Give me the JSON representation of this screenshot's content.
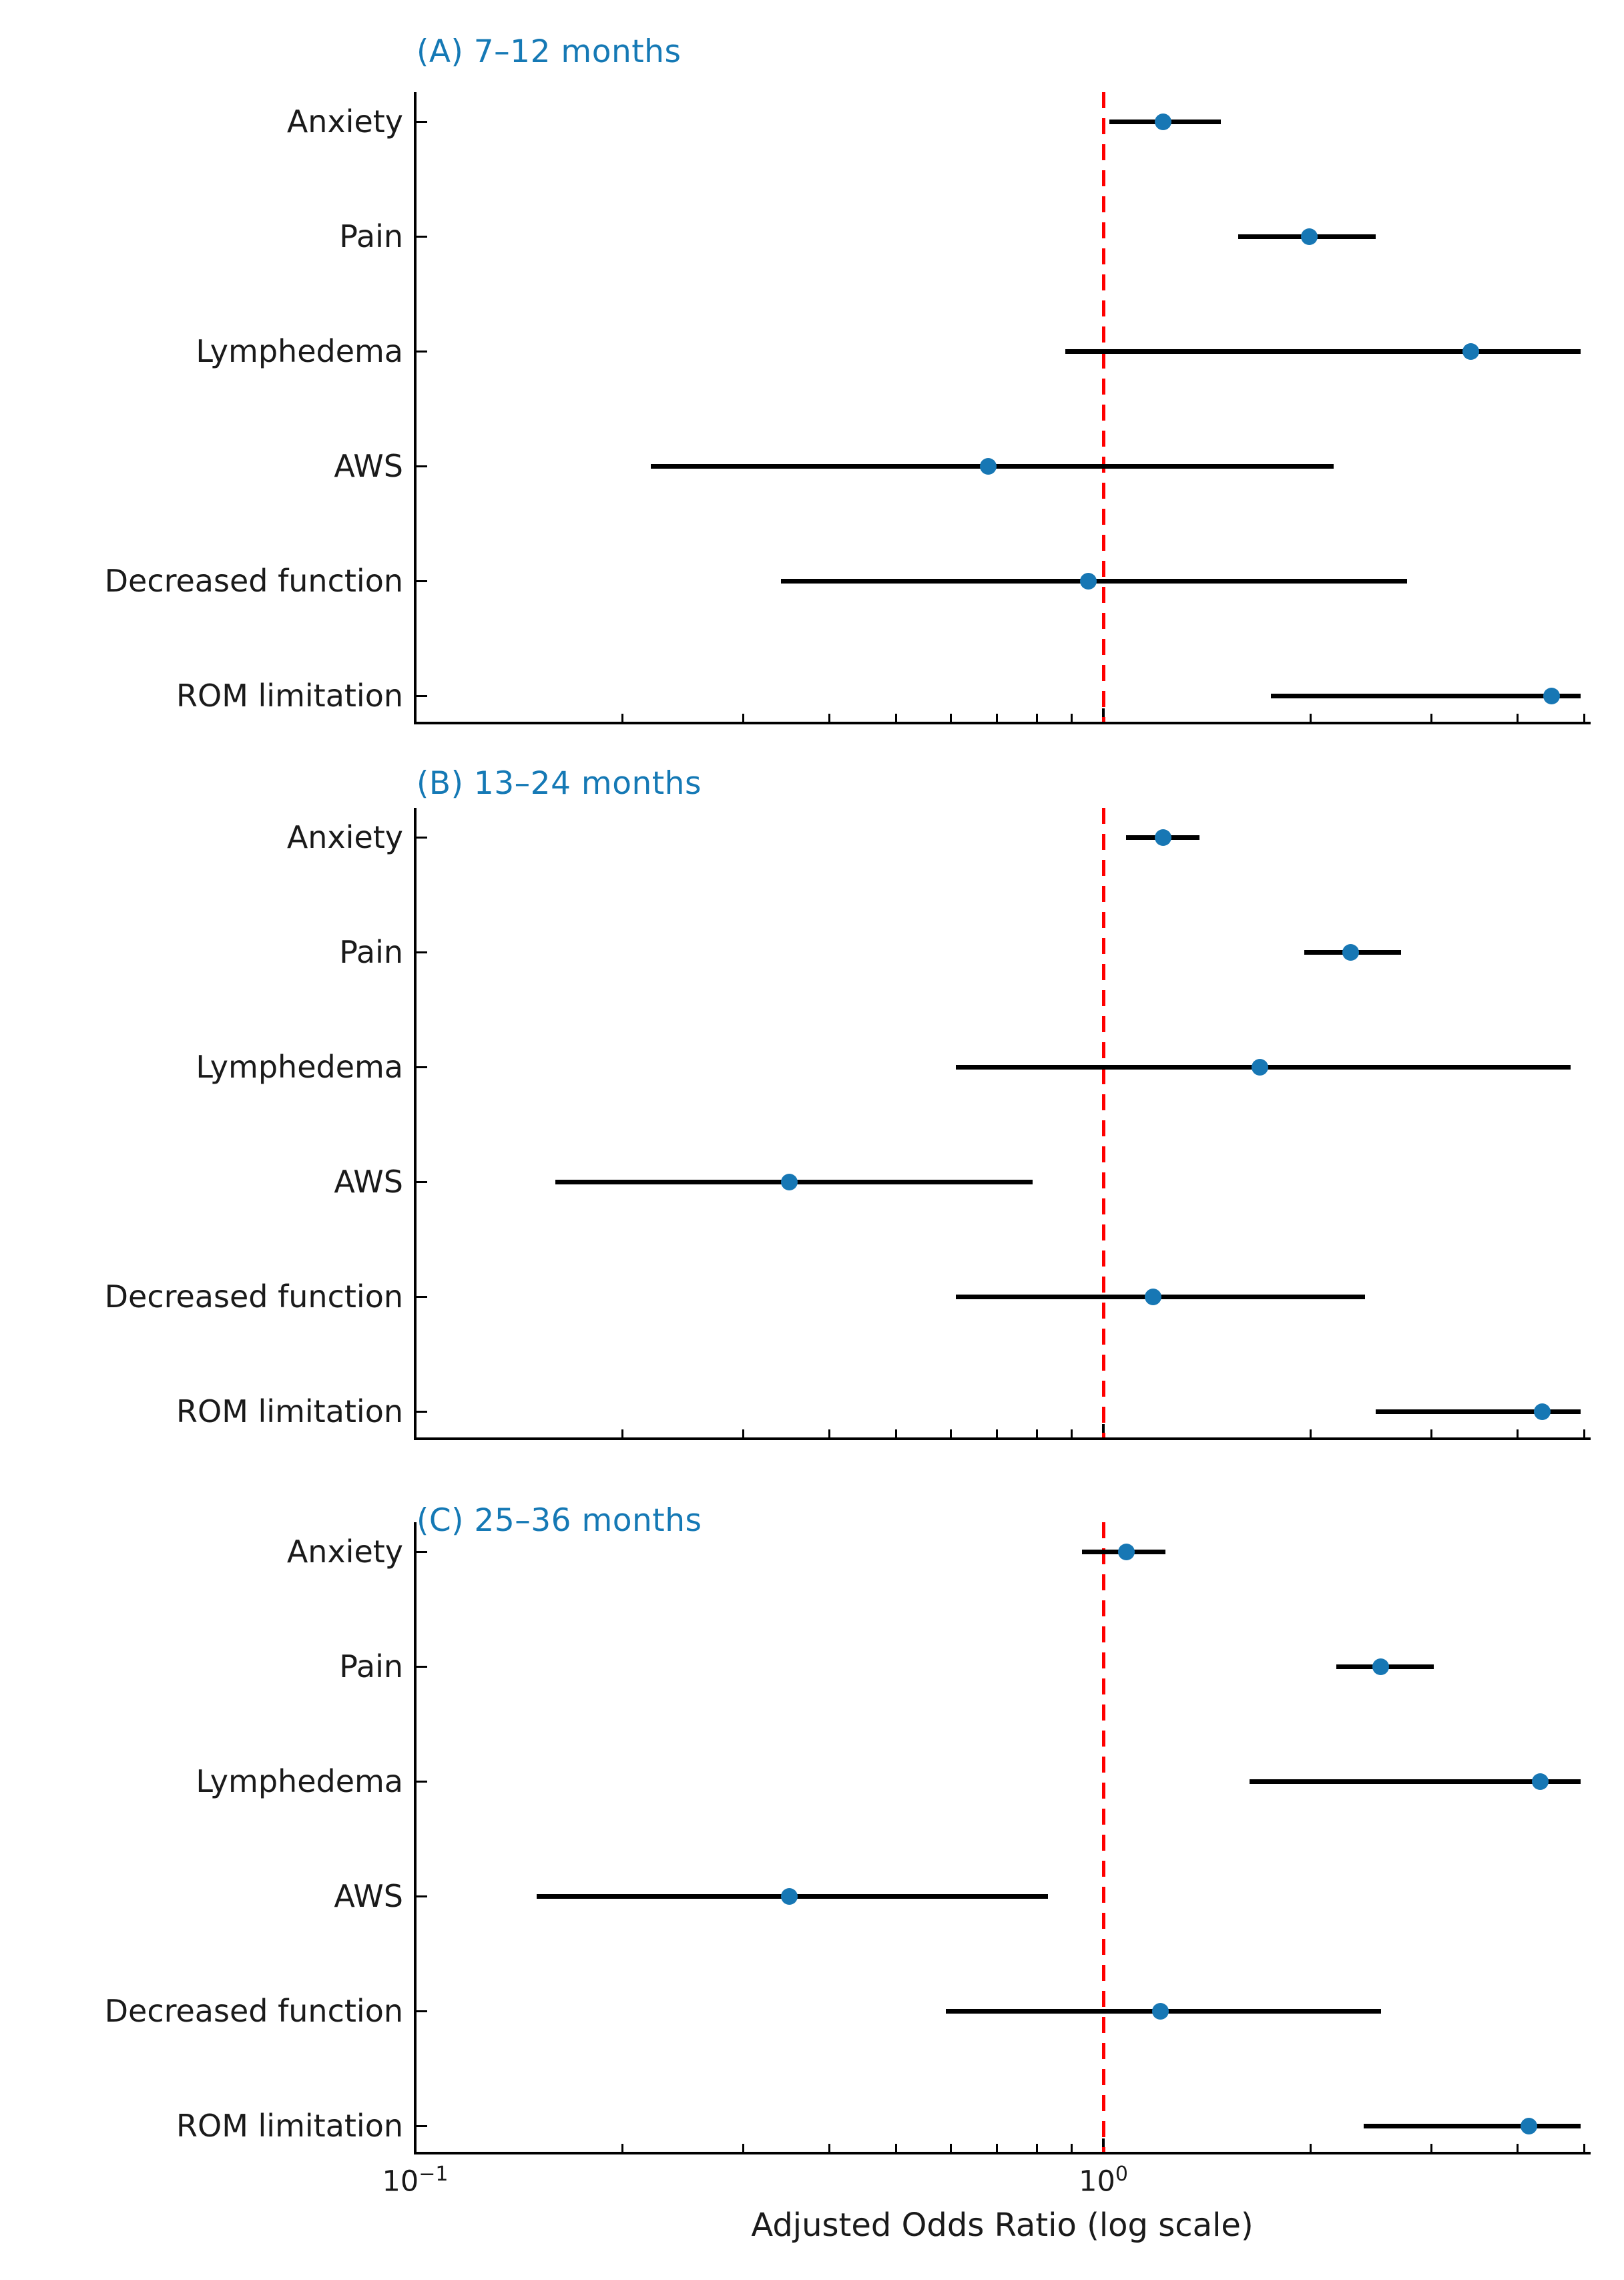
{
  "figure_colors": {
    "background": "#ffffff",
    "panel_title": "#1579b5",
    "marker": "#1777b4",
    "ci_line": "#000000",
    "axis": "#000000",
    "text": "#1a1a1a",
    "reference_line": "#ff0000"
  },
  "chart_data": {
    "type": "scatter",
    "subtype": "forest-plot-with-error-bars",
    "x_scale": "log",
    "xlim": [
      0.1,
      5.08
    ],
    "xlabel": "Adjusted Odds Ratio (log scale)",
    "x_major_ticks": [
      0.1,
      1.0
    ],
    "x_major_tick_labels": [
      {
        "base": "10",
        "sup": "−1"
      },
      {
        "base": "10",
        "sup": "0"
      }
    ],
    "x_minor_ticks": [
      0.2,
      0.3,
      0.4,
      0.5,
      0.6,
      0.7,
      0.8,
      0.9,
      2,
      3,
      4,
      5
    ],
    "grid": "off",
    "reference_line": {
      "x": 1.0,
      "style": "dashed",
      "color": "#ff0000"
    },
    "categories": [
      "Anxiety",
      "Pain",
      "Lymphedema",
      "AWS",
      "Decreased function",
      "ROM limitation"
    ],
    "panels": [
      {
        "id": "A",
        "title": "(A) 7–12 months",
        "points": [
          {
            "label": "Anxiety",
            "or": 1.22,
            "ci_low": 1.02,
            "ci_high": 1.48
          },
          {
            "label": "Pain",
            "or": 1.99,
            "ci_low": 1.57,
            "ci_high": 2.49
          },
          {
            "label": "Lymphedema",
            "or": 3.42,
            "ci_low": 0.88,
            "ci_high": 4.94
          },
          {
            "label": "AWS",
            "or": 0.68,
            "ci_low": 0.22,
            "ci_high": 2.16
          },
          {
            "label": "Decreased function",
            "or": 0.95,
            "ci_low": 0.34,
            "ci_high": 2.76
          },
          {
            "label": "ROM limitation",
            "or": 4.48,
            "ci_low": 1.75,
            "ci_high": 4.94
          }
        ]
      },
      {
        "id": "B",
        "title": "(B) 13–24 months",
        "points": [
          {
            "label": "Anxiety",
            "or": 1.22,
            "ci_low": 1.08,
            "ci_high": 1.38
          },
          {
            "label": "Pain",
            "or": 2.29,
            "ci_low": 1.96,
            "ci_high": 2.71
          },
          {
            "label": "Lymphedema",
            "or": 1.69,
            "ci_low": 0.61,
            "ci_high": 4.78
          },
          {
            "label": "AWS",
            "or": 0.35,
            "ci_low": 0.16,
            "ci_high": 0.79
          },
          {
            "label": "Decreased function",
            "or": 1.18,
            "ci_low": 0.61,
            "ci_high": 2.4
          },
          {
            "label": "ROM limitation",
            "or": 4.34,
            "ci_low": 2.49,
            "ci_high": 4.94
          }
        ]
      },
      {
        "id": "C",
        "title": "(C) 25–36 months",
        "points": [
          {
            "label": "Anxiety",
            "or": 1.08,
            "ci_low": 0.93,
            "ci_high": 1.23
          },
          {
            "label": "Pain",
            "or": 2.53,
            "ci_low": 2.18,
            "ci_high": 3.02
          },
          {
            "label": "Lymphedema",
            "or": 4.31,
            "ci_low": 1.63,
            "ci_high": 4.94
          },
          {
            "label": "AWS",
            "or": 0.35,
            "ci_low": 0.15,
            "ci_high": 0.83
          },
          {
            "label": "Decreased function",
            "or": 1.21,
            "ci_low": 0.59,
            "ci_high": 2.53
          },
          {
            "label": "ROM limitation",
            "or": 4.15,
            "ci_low": 2.39,
            "ci_high": 4.94
          }
        ]
      }
    ]
  }
}
